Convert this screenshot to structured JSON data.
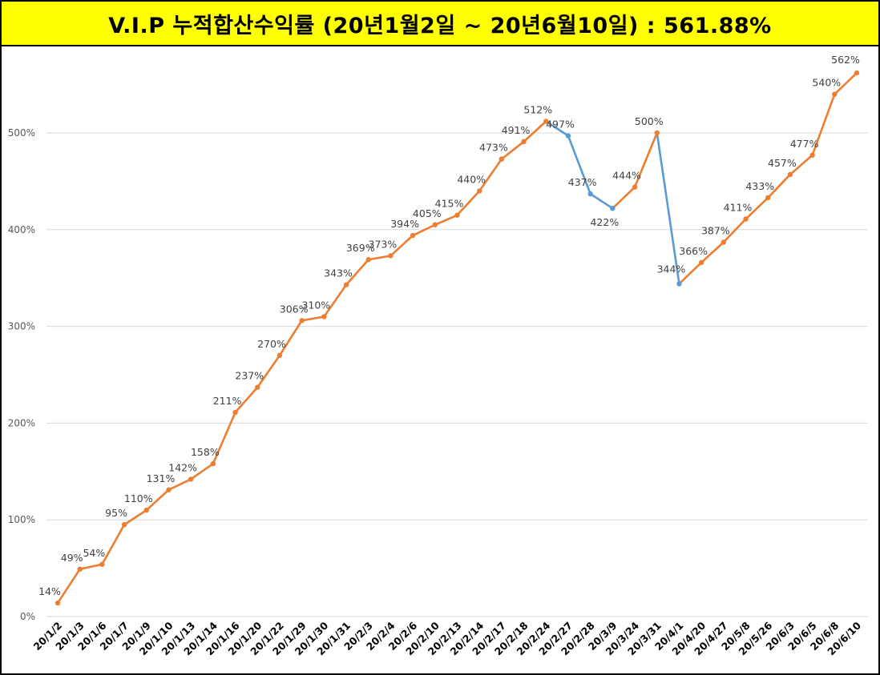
{
  "title": "V.I.P 누적합산수익률 (20년1월2일 ~ 20년6월10일) : 561.88%",
  "chart_data": {
    "type": "line",
    "title": "V.I.P 누적합산수익률 (20년1월2일 ~ 20년6월10일) : 561.88%",
    "xlabel": "",
    "ylabel": "",
    "ylim": [
      0,
      600
    ],
    "y_ticks": [
      0,
      100,
      200,
      300,
      400,
      500
    ],
    "y_tick_labels": [
      "0%",
      "100%",
      "200%",
      "300%",
      "400%",
      "500%"
    ],
    "grid": true,
    "legend": "none",
    "categories": [
      "20/1/2",
      "20/1/3",
      "20/1/6",
      "20/1/7",
      "20/1/9",
      "20/1/10",
      "20/1/13",
      "20/1/14",
      "20/1/16",
      "20/1/20",
      "20/1/22",
      "20/1/29",
      "20/1/30",
      "20/1/31",
      "20/2/3",
      "20/2/4",
      "20/2/6",
      "20/2/10",
      "20/2/13",
      "20/2/14",
      "20/2/17",
      "20/2/18",
      "20/2/24",
      "20/2/27",
      "20/2/28",
      "20/3/9",
      "20/3/24",
      "20/3/31",
      "20/4/1",
      "20/4/20",
      "20/4/27",
      "20/5/8",
      "20/5/26",
      "20/6/3",
      "20/6/5",
      "20/6/8",
      "20/6/10"
    ],
    "values": [
      14,
      49,
      54,
      95,
      110,
      131,
      142,
      158,
      211,
      237,
      270,
      306,
      310,
      343,
      369,
      373,
      394,
      405,
      415,
      440,
      473,
      491,
      512,
      497,
      437,
      422,
      444,
      500,
      344,
      366,
      387,
      411,
      433,
      457,
      477,
      540,
      562
    ],
    "data_labels": [
      "14%",
      "49%",
      "54%",
      "95%",
      "110%",
      "131%",
      "142%",
      "158%",
      "211%",
      "237%",
      "270%",
      "306%",
      "310%",
      "343%",
      "369%",
      "373%",
      "394%",
      "405%",
      "415%",
      "440%",
      "473%",
      "491%",
      "512%",
      "497%",
      "437%",
      "422%",
      "444%",
      "500%",
      "344%",
      "366%",
      "387%",
      "411%",
      "433%",
      "457%",
      "477%",
      "540%",
      "562%"
    ],
    "colors": {
      "up": "#ed7d31",
      "down": "#5b9bd5",
      "grid": "#d9d9d9"
    }
  }
}
